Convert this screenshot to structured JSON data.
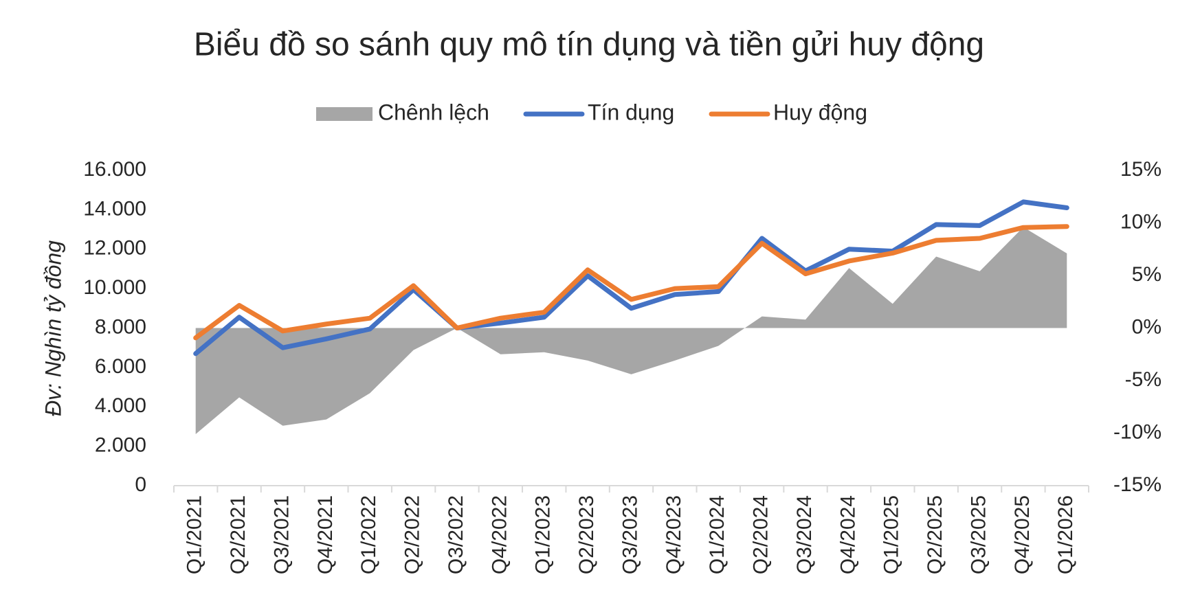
{
  "chart_data": {
    "type": "line",
    "title": "Biểu đồ so sánh quy mô tín dụng và tiền gửi huy động",
    "y_label": "Đv: Nghìn tỷ đồng",
    "categories": [
      "Q1/2021",
      "Q2/2021",
      "Q3/2021",
      "Q4/2021",
      "Q1/2022",
      "Q2/2022",
      "Q3/2022",
      "Q4/2022",
      "Q1/2023",
      "Q2/2023",
      "Q3/2023",
      "Q4/2023",
      "Q1/2024",
      "Q2/2024",
      "Q3/2024",
      "Q4/2024",
      "Q1/2025",
      "Q2/2025",
      "Q3/2025",
      "Q4/2025",
      "Q1/2026"
    ],
    "series": [
      {
        "name": "Chênh lệch",
        "type": "area",
        "axis": "y2",
        "color": "#a6a6a6",
        "values": [
          -10.1,
          -6.6,
          -9.3,
          -8.7,
          -6.2,
          -2.1,
          0,
          -2.5,
          -2.3,
          -3.1,
          -4.4,
          -3.1,
          -1.7,
          1.1,
          0.8,
          5.7,
          2.3,
          6.8,
          5.4,
          9.6,
          7.1
        ]
      },
      {
        "name": "Tín dụng",
        "color": "#4472c4",
        "values": [
          6700,
          8550,
          7000,
          7450,
          7950,
          9950,
          8000,
          8250,
          8550,
          10650,
          9000,
          9700,
          9850,
          12550,
          10900,
          12000,
          11900,
          13250,
          13200,
          14400,
          14100
        ]
      },
      {
        "name": "Huy động",
        "color": "#ed7d31",
        "values": [
          7500,
          9150,
          7850,
          8200,
          8500,
          10150,
          8000,
          8500,
          8800,
          10950,
          9450,
          10000,
          10100,
          12300,
          10750,
          11400,
          11800,
          12450,
          12550,
          13100,
          13150
        ]
      }
    ],
    "ylim": [
      0,
      16000
    ],
    "yticks": [
      {
        "value": 0,
        "label": "0"
      },
      {
        "value": 2000,
        "label": "2.000"
      },
      {
        "value": 4000,
        "label": "4.000"
      },
      {
        "value": 6000,
        "label": "6.000"
      },
      {
        "value": 8000,
        "label": "8.000"
      },
      {
        "value": 10000,
        "label": "10.000"
      },
      {
        "value": 12000,
        "label": "12.000"
      },
      {
        "value": 14000,
        "label": "14.000"
      },
      {
        "value": 16000,
        "label": "16.000"
      }
    ],
    "y2lim": [
      -15,
      15
    ],
    "y2ticks": [
      {
        "value": -15,
        "label": "-15%"
      },
      {
        "value": -10,
        "label": "-10%"
      },
      {
        "value": -5,
        "label": "-5%"
      },
      {
        "value": 0,
        "label": "0%"
      },
      {
        "value": 5,
        "label": "5%"
      },
      {
        "value": 10,
        "label": "10%"
      },
      {
        "value": 15,
        "label": "15%"
      }
    ],
    "legend": "top"
  }
}
